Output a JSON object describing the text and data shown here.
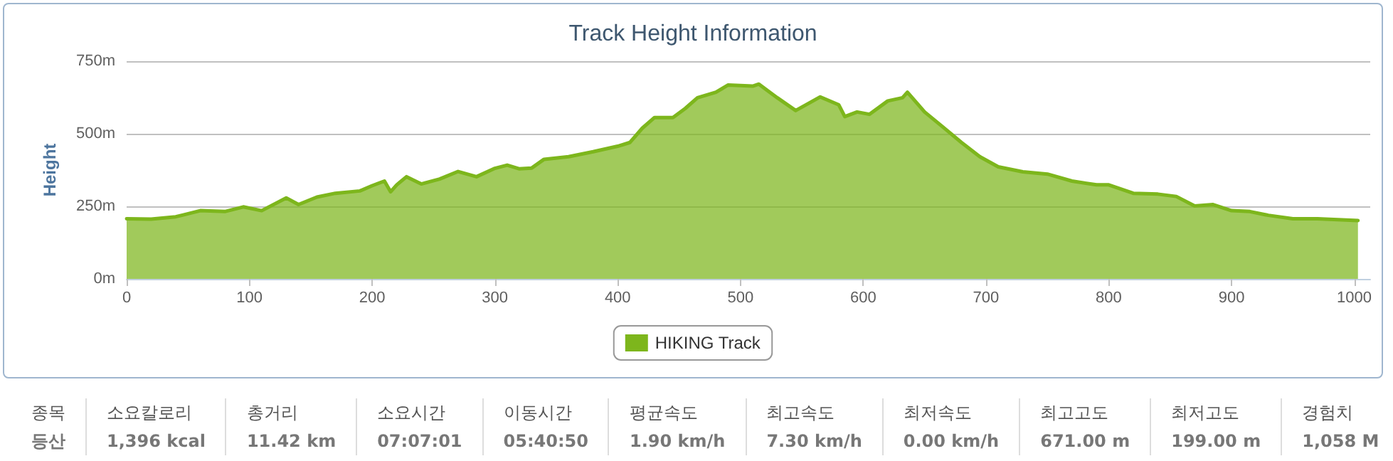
{
  "chart_data": {
    "type": "area",
    "title": "Track Height Information",
    "ylabel": "Height",
    "x": [
      0,
      20,
      40,
      60,
      80,
      95,
      110,
      130,
      140,
      155,
      170,
      190,
      200,
      210,
      215,
      220,
      228,
      240,
      255,
      270,
      285,
      300,
      310,
      320,
      330,
      340,
      360,
      380,
      400,
      410,
      420,
      430,
      445,
      455,
      465,
      480,
      490,
      500,
      510,
      515,
      530,
      545,
      565,
      580,
      585,
      595,
      605,
      620,
      632,
      636,
      650,
      665,
      680,
      695,
      710,
      730,
      750,
      770,
      790,
      800,
      820,
      840,
      855,
      870,
      885,
      900,
      915,
      930,
      950,
      970,
      1003
    ],
    "series": [
      {
        "name": "HIKING Track",
        "color": "#7db61c",
        "values": [
          207,
          206,
          214,
          235,
          232,
          248,
          235,
          279,
          256,
          282,
          295,
          303,
          321,
          337,
          300,
          324,
          352,
          327,
          344,
          370,
          352,
          381,
          392,
          379,
          382,
          412,
          421,
          438,
          457,
          470,
          519,
          556,
          556,
          587,
          624,
          643,
          668,
          666,
          664,
          671,
          624,
          580,
          627,
          600,
          559,
          575,
          567,
          613,
          624,
          643,
          575,
          523,
          470,
          421,
          386,
          369,
          361,
          337,
          324,
          324,
          295,
          292,
          284,
          251,
          256,
          235,
          232,
          219,
          207,
          207,
          201
        ]
      }
    ],
    "xlim": [
      0,
      1013
    ],
    "xticks": [
      0,
      100,
      200,
      300,
      400,
      500,
      600,
      700,
      800,
      900,
      1000
    ],
    "ylim": [
      0,
      750
    ],
    "yticks": [
      {
        "value": 0,
        "label": "0m"
      },
      {
        "value": 250,
        "label": "250m"
      },
      {
        "value": 500,
        "label": "500m"
      },
      {
        "value": 750,
        "label": "750m"
      }
    ],
    "grid": "y",
    "legend": "bottom",
    "marker": "none",
    "line_style": "solid",
    "annotations": [
      "종목\n등산",
      "소요칼로리\n1,396 kcal",
      "총거리\n11.42 km",
      "소요시간\n07:07:01",
      "이동시간\n05:40:50",
      "평균속도\n1.90 km/h",
      "최고속도\n7.30 km/h",
      "최저속도\n0.00 km/h",
      "최고고도\n671.00 m",
      "최저고도\n199.00 m",
      "경험치\n1,058 M"
    ]
  }
}
